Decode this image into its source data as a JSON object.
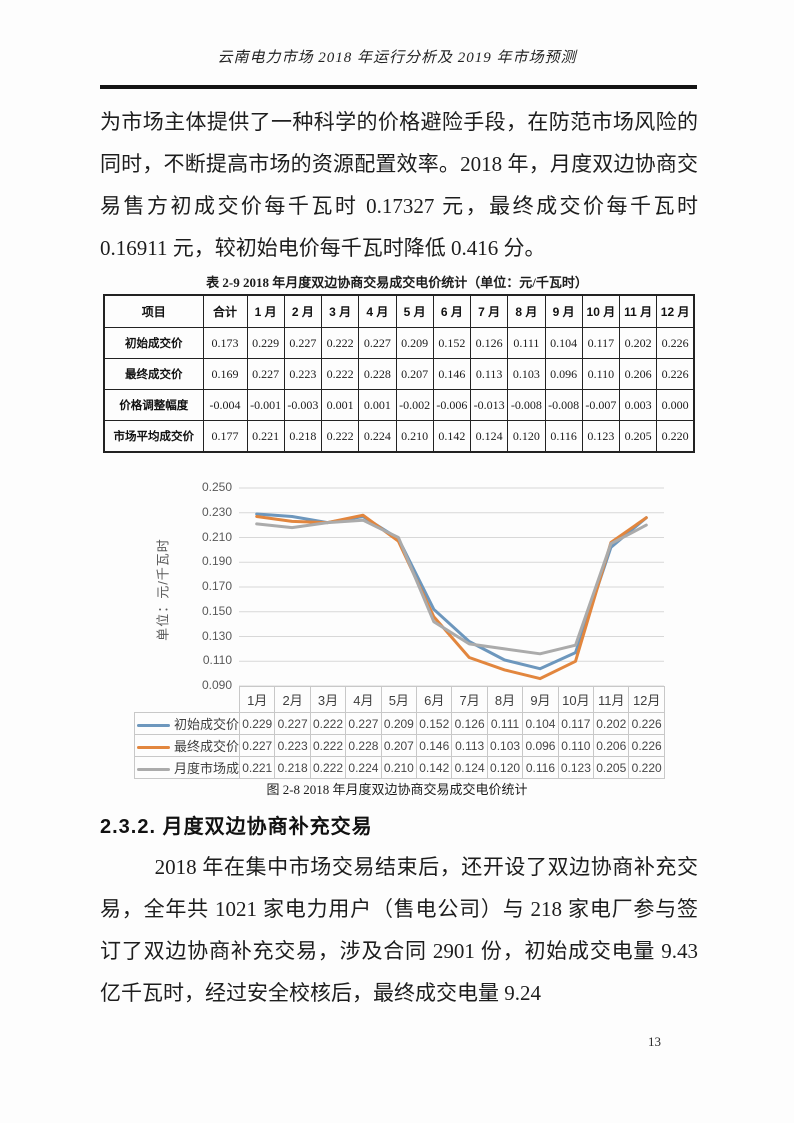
{
  "header": {
    "title": "云南电力市场 2018 年运行分析及 2019 年市场预测"
  },
  "body": {
    "paragraph1": "为市场主体提供了一种科学的价格避险手段，在防范市场风险的同时，不断提高市场的资源配置效率。2018 年，月度双边协商交易售方初成交价每千瓦时 0.17327 元，最终成交价每千瓦时 0.16911 元，较初始电价每千瓦时降低 0.416 分。",
    "section_heading": "2.3.2. 月度双边协商补充交易",
    "paragraph2": "2018 年在集中市场交易结束后，还开设了双边协商补充交易，全年共 1021 家电力用户（售电公司）与 218 家电厂参与签订了双边协商补充交易，涉及合同 2901 份，初始成交电量 9.43 亿千瓦时，经过安全校核后，最终成交电量 9.24"
  },
  "table": {
    "caption": "表 2-9  2018 年月度双边协商交易成交电价统计（单位：元/千瓦时）",
    "columns": [
      "项目",
      "合计",
      "1 月",
      "2 月",
      "3 月",
      "4 月",
      "5 月",
      "6 月",
      "7 月",
      "8 月",
      "9 月",
      "10 月",
      "11 月",
      "12 月"
    ],
    "rows": [
      {
        "label": "初始成交价",
        "values": [
          "0.173",
          "0.229",
          "0.227",
          "0.222",
          "0.227",
          "0.209",
          "0.152",
          "0.126",
          "0.111",
          "0.104",
          "0.117",
          "0.202",
          "0.226"
        ]
      },
      {
        "label": "最终成交价",
        "values": [
          "0.169",
          "0.227",
          "0.223",
          "0.222",
          "0.228",
          "0.207",
          "0.146",
          "0.113",
          "0.103",
          "0.096",
          "0.110",
          "0.206",
          "0.226"
        ]
      },
      {
        "label": "价格调整幅度",
        "values": [
          "-0.004",
          "-0.001",
          "-0.003",
          "0.001",
          "0.001",
          "-0.002",
          "-0.006",
          "-0.013",
          "-0.008",
          "-0.008",
          "-0.007",
          "0.003",
          "0.000"
        ]
      },
      {
        "label": "市场平均成交价",
        "values": [
          "0.177",
          "0.221",
          "0.218",
          "0.222",
          "0.224",
          "0.210",
          "0.142",
          "0.124",
          "0.120",
          "0.116",
          "0.123",
          "0.205",
          "0.220"
        ]
      }
    ]
  },
  "chart_data": {
    "type": "line",
    "title": "",
    "xlabel": "",
    "ylabel": "单位：元/千瓦时",
    "ylim": [
      0.09,
      0.25
    ],
    "ytick_step": 0.02,
    "grid": true,
    "legend_position": "data-table-left",
    "categories": [
      "1月",
      "2月",
      "3月",
      "4月",
      "5月",
      "6月",
      "7月",
      "8月",
      "9月",
      "10月",
      "11月",
      "12月"
    ],
    "series": [
      {
        "name": "初始成交价",
        "color": "#6d97bd",
        "values": [
          0.229,
          0.227,
          0.222,
          0.227,
          0.209,
          0.152,
          0.126,
          0.111,
          0.104,
          0.117,
          0.202,
          0.226
        ]
      },
      {
        "name": "最终成交价",
        "color": "#e2863e",
        "values": [
          0.227,
          0.223,
          0.222,
          0.228,
          0.207,
          0.146,
          0.113,
          0.103,
          0.096,
          0.11,
          0.206,
          0.226
        ]
      },
      {
        "name": "月度市场成交价",
        "color": "#ababab",
        "values": [
          0.221,
          0.218,
          0.222,
          0.224,
          0.21,
          0.142,
          0.124,
          0.12,
          0.116,
          0.123,
          0.205,
          0.22
        ]
      }
    ]
  },
  "figure": {
    "caption": "图 2-8  2018 年月度双边协商交易成交电价统计"
  },
  "footer": {
    "page_number": "13"
  }
}
